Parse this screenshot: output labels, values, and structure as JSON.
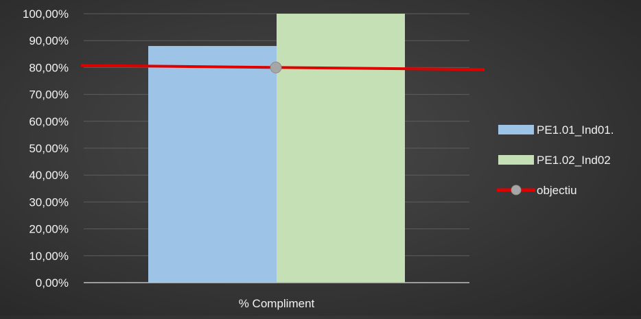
{
  "chart_data": {
    "type": "bar",
    "categories": [
      "% Compliment"
    ],
    "series": [
      {
        "name": "PE1.01_Ind01.",
        "values": [
          0.88
        ],
        "color": "#9dc3e6",
        "kind": "bar"
      },
      {
        "name": "PE1.02_Ind02",
        "values": [
          1.0
        ],
        "color": "#c5e0b4",
        "kind": "bar"
      },
      {
        "name": "objectiu",
        "values": [
          0.8
        ],
        "color": "#e00000",
        "marker_color": "#a6a6a6",
        "kind": "line"
      }
    ],
    "ylim": [
      0,
      1
    ],
    "y_ticks": [
      "0,00%",
      "10,00%",
      "20,00%",
      "30,00%",
      "40,00%",
      "50,00%",
      "60,00%",
      "70,00%",
      "80,00%",
      "90,00%",
      "100,00%"
    ],
    "grid": true,
    "legend_position": "right",
    "title": "",
    "xlabel": "",
    "ylabel": ""
  }
}
